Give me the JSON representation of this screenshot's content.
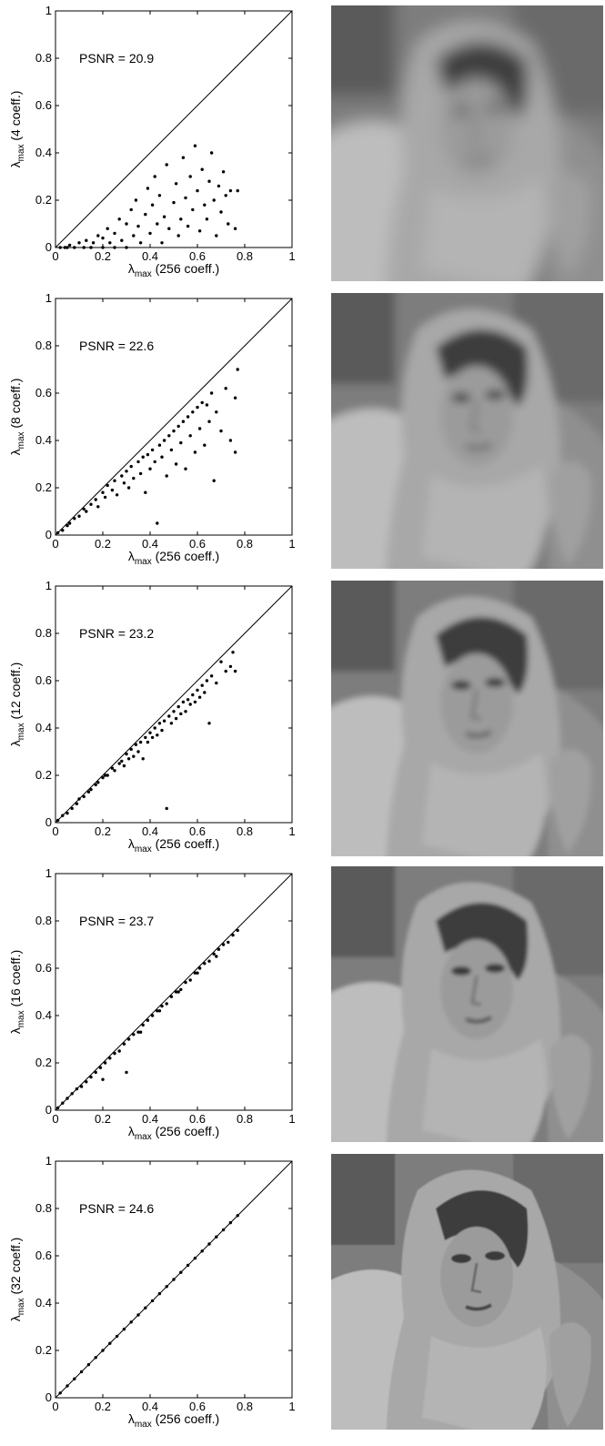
{
  "chart_data": [
    {
      "type": "scatter",
      "title": "",
      "annotation": "PSNR = 20.9",
      "ylabel_main": "λ",
      "ylabel_sub": "max",
      "ylabel_rest": " (4 coeff.)",
      "xlabel_main": "λ",
      "xlabel_sub": "max",
      "xlabel_rest": " (256 coeff.)",
      "xlim": [
        0,
        1
      ],
      "ylim": [
        0,
        1
      ],
      "xticks": [
        "0",
        "0.2",
        "0.4",
        "0.6",
        "0.8",
        "1"
      ],
      "yticks": [
        "0",
        "0.2",
        "0.4",
        "0.6",
        "0.8",
        "1"
      ],
      "reference_line": "y = x",
      "grid": false,
      "points": [
        [
          0.02,
          0.0
        ],
        [
          0.04,
          0.0
        ],
        [
          0.05,
          0.0
        ],
        [
          0.06,
          0.01
        ],
        [
          0.08,
          0.0
        ],
        [
          0.1,
          0.02
        ],
        [
          0.12,
          0.0
        ],
        [
          0.13,
          0.03
        ],
        [
          0.15,
          0.0
        ],
        [
          0.16,
          0.02
        ],
        [
          0.18,
          0.05
        ],
        [
          0.2,
          0.0
        ],
        [
          0.2,
          0.04
        ],
        [
          0.22,
          0.08
        ],
        [
          0.23,
          0.02
        ],
        [
          0.25,
          0.0
        ],
        [
          0.25,
          0.06
        ],
        [
          0.27,
          0.12
        ],
        [
          0.28,
          0.03
        ],
        [
          0.3,
          0.1
        ],
        [
          0.3,
          0.0
        ],
        [
          0.32,
          0.16
        ],
        [
          0.33,
          0.05
        ],
        [
          0.34,
          0.2
        ],
        [
          0.35,
          0.09
        ],
        [
          0.36,
          0.02
        ],
        [
          0.38,
          0.14
        ],
        [
          0.39,
          0.25
        ],
        [
          0.4,
          0.06
        ],
        [
          0.41,
          0.18
        ],
        [
          0.42,
          0.3
        ],
        [
          0.43,
          0.1
        ],
        [
          0.44,
          0.22
        ],
        [
          0.45,
          0.02
        ],
        [
          0.46,
          0.13
        ],
        [
          0.47,
          0.35
        ],
        [
          0.48,
          0.08
        ],
        [
          0.5,
          0.19
        ],
        [
          0.51,
          0.27
        ],
        [
          0.52,
          0.05
        ],
        [
          0.53,
          0.12
        ],
        [
          0.54,
          0.38
        ],
        [
          0.55,
          0.21
        ],
        [
          0.56,
          0.09
        ],
        [
          0.57,
          0.3
        ],
        [
          0.58,
          0.16
        ],
        [
          0.59,
          0.43
        ],
        [
          0.6,
          0.24
        ],
        [
          0.61,
          0.07
        ],
        [
          0.62,
          0.33
        ],
        [
          0.63,
          0.18
        ],
        [
          0.64,
          0.12
        ],
        [
          0.65,
          0.28
        ],
        [
          0.66,
          0.4
        ],
        [
          0.67,
          0.2
        ],
        [
          0.68,
          0.05
        ],
        [
          0.69,
          0.26
        ],
        [
          0.7,
          0.15
        ],
        [
          0.71,
          0.32
        ],
        [
          0.72,
          0.22
        ],
        [
          0.73,
          0.1
        ],
        [
          0.74,
          0.24
        ],
        [
          0.76,
          0.08
        ],
        [
          0.77,
          0.24
        ]
      ]
    },
    {
      "type": "scatter",
      "title": "",
      "annotation": "PSNR = 22.6",
      "ylabel_main": "λ",
      "ylabel_sub": "max",
      "ylabel_rest": " (8 coeff.)",
      "xlabel_main": "λ",
      "xlabel_sub": "max",
      "xlabel_rest": " (256 coeff.)",
      "xlim": [
        0,
        1
      ],
      "ylim": [
        0,
        1
      ],
      "xticks": [
        "0",
        "0.2",
        "0.4",
        "0.6",
        "0.8",
        "1"
      ],
      "yticks": [
        "0",
        "0.2",
        "0.4",
        "0.6",
        "0.8",
        "1"
      ],
      "reference_line": "y = x",
      "grid": false,
      "points": [
        [
          0.01,
          0.01
        ],
        [
          0.03,
          0.02
        ],
        [
          0.05,
          0.04
        ],
        [
          0.06,
          0.05
        ],
        [
          0.08,
          0.07
        ],
        [
          0.1,
          0.08
        ],
        [
          0.12,
          0.11
        ],
        [
          0.13,
          0.1
        ],
        [
          0.15,
          0.13
        ],
        [
          0.17,
          0.15
        ],
        [
          0.18,
          0.12
        ],
        [
          0.2,
          0.18
        ],
        [
          0.21,
          0.16
        ],
        [
          0.22,
          0.21
        ],
        [
          0.24,
          0.19
        ],
        [
          0.25,
          0.23
        ],
        [
          0.26,
          0.17
        ],
        [
          0.28,
          0.25
        ],
        [
          0.29,
          0.22
        ],
        [
          0.3,
          0.27
        ],
        [
          0.31,
          0.2
        ],
        [
          0.32,
          0.29
        ],
        [
          0.33,
          0.24
        ],
        [
          0.35,
          0.31
        ],
        [
          0.36,
          0.26
        ],
        [
          0.37,
          0.33
        ],
        [
          0.38,
          0.18
        ],
        [
          0.39,
          0.34
        ],
        [
          0.4,
          0.28
        ],
        [
          0.41,
          0.36
        ],
        [
          0.42,
          0.31
        ],
        [
          0.43,
          0.05
        ],
        [
          0.44,
          0.38
        ],
        [
          0.45,
          0.33
        ],
        [
          0.46,
          0.4
        ],
        [
          0.47,
          0.25
        ],
        [
          0.48,
          0.42
        ],
        [
          0.49,
          0.36
        ],
        [
          0.5,
          0.44
        ],
        [
          0.51,
          0.3
        ],
        [
          0.52,
          0.46
        ],
        [
          0.53,
          0.39
        ],
        [
          0.54,
          0.48
        ],
        [
          0.55,
          0.28
        ],
        [
          0.56,
          0.5
        ],
        [
          0.57,
          0.42
        ],
        [
          0.58,
          0.52
        ],
        [
          0.59,
          0.35
        ],
        [
          0.6,
          0.54
        ],
        [
          0.61,
          0.45
        ],
        [
          0.62,
          0.56
        ],
        [
          0.63,
          0.38
        ],
        [
          0.64,
          0.55
        ],
        [
          0.65,
          0.48
        ],
        [
          0.66,
          0.6
        ],
        [
          0.67,
          0.23
        ],
        [
          0.68,
          0.52
        ],
        [
          0.7,
          0.44
        ],
        [
          0.72,
          0.62
        ],
        [
          0.74,
          0.4
        ],
        [
          0.76,
          0.58
        ],
        [
          0.76,
          0.35
        ],
        [
          0.77,
          0.7
        ]
      ]
    },
    {
      "type": "scatter",
      "title": "",
      "annotation": "PSNR = 23.2",
      "ylabel_main": "λ",
      "ylabel_sub": "max",
      "ylabel_rest": " (12 coeff.)",
      "xlabel_main": "λ",
      "xlabel_sub": "max",
      "xlabel_rest": " (256 coeff.)",
      "xlim": [
        0,
        1
      ],
      "ylim": [
        0,
        1
      ],
      "xticks": [
        "0",
        "0.2",
        "0.4",
        "0.6",
        "0.8",
        "1"
      ],
      "yticks": [
        "0",
        "0.2",
        "0.4",
        "0.6",
        "0.8",
        "1"
      ],
      "reference_line": "y = x",
      "grid": false,
      "points": [
        [
          0.01,
          0.01
        ],
        [
          0.03,
          0.03
        ],
        [
          0.05,
          0.04
        ],
        [
          0.07,
          0.06
        ],
        [
          0.09,
          0.08
        ],
        [
          0.1,
          0.1
        ],
        [
          0.12,
          0.11
        ],
        [
          0.14,
          0.13
        ],
        [
          0.15,
          0.14
        ],
        [
          0.17,
          0.16
        ],
        [
          0.18,
          0.17
        ],
        [
          0.2,
          0.19
        ],
        [
          0.21,
          0.2
        ],
        [
          0.22,
          0.2
        ],
        [
          0.24,
          0.23
        ],
        [
          0.25,
          0.22
        ],
        [
          0.27,
          0.25
        ],
        [
          0.28,
          0.26
        ],
        [
          0.29,
          0.24
        ],
        [
          0.3,
          0.29
        ],
        [
          0.31,
          0.27
        ],
        [
          0.32,
          0.31
        ],
        [
          0.33,
          0.28
        ],
        [
          0.34,
          0.33
        ],
        [
          0.35,
          0.3
        ],
        [
          0.36,
          0.34
        ],
        [
          0.37,
          0.27
        ],
        [
          0.38,
          0.36
        ],
        [
          0.39,
          0.34
        ],
        [
          0.4,
          0.38
        ],
        [
          0.41,
          0.36
        ],
        [
          0.42,
          0.4
        ],
        [
          0.43,
          0.37
        ],
        [
          0.44,
          0.42
        ],
        [
          0.45,
          0.39
        ],
        [
          0.46,
          0.43
        ],
        [
          0.47,
          0.06
        ],
        [
          0.48,
          0.45
        ],
        [
          0.49,
          0.42
        ],
        [
          0.5,
          0.47
        ],
        [
          0.51,
          0.44
        ],
        [
          0.52,
          0.49
        ],
        [
          0.53,
          0.46
        ],
        [
          0.54,
          0.51
        ],
        [
          0.55,
          0.47
        ],
        [
          0.56,
          0.52
        ],
        [
          0.57,
          0.5
        ],
        [
          0.58,
          0.54
        ],
        [
          0.59,
          0.51
        ],
        [
          0.6,
          0.56
        ],
        [
          0.61,
          0.53
        ],
        [
          0.62,
          0.58
        ],
        [
          0.63,
          0.55
        ],
        [
          0.64,
          0.6
        ],
        [
          0.65,
          0.42
        ],
        [
          0.66,
          0.62
        ],
        [
          0.68,
          0.59
        ],
        [
          0.7,
          0.68
        ],
        [
          0.72,
          0.64
        ],
        [
          0.74,
          0.66
        ],
        [
          0.75,
          0.72
        ],
        [
          0.76,
          0.64
        ]
      ]
    },
    {
      "type": "scatter",
      "title": "",
      "annotation": "PSNR = 23.7",
      "ylabel_main": "λ",
      "ylabel_sub": "max",
      "ylabel_rest": " (16 coeff.)",
      "xlabel_main": "λ",
      "xlabel_sub": "max",
      "xlabel_rest": " (256 coeff.)",
      "xlim": [
        0,
        1
      ],
      "ylim": [
        0,
        1
      ],
      "xticks": [
        "0",
        "0.2",
        "0.4",
        "0.6",
        "0.8",
        "1"
      ],
      "yticks": [
        "0",
        "0.2",
        "0.4",
        "0.6",
        "0.8",
        "1"
      ],
      "reference_line": "y = x",
      "grid": false,
      "points": [
        [
          0.01,
          0.01
        ],
        [
          0.03,
          0.03
        ],
        [
          0.05,
          0.05
        ],
        [
          0.07,
          0.07
        ],
        [
          0.09,
          0.09
        ],
        [
          0.11,
          0.1
        ],
        [
          0.13,
          0.12
        ],
        [
          0.15,
          0.14
        ],
        [
          0.17,
          0.16
        ],
        [
          0.19,
          0.18
        ],
        [
          0.2,
          0.13
        ],
        [
          0.21,
          0.2
        ],
        [
          0.23,
          0.22
        ],
        [
          0.25,
          0.24
        ],
        [
          0.27,
          0.25
        ],
        [
          0.29,
          0.28
        ],
        [
          0.3,
          0.16
        ],
        [
          0.31,
          0.3
        ],
        [
          0.33,
          0.32
        ],
        [
          0.35,
          0.33
        ],
        [
          0.37,
          0.36
        ],
        [
          0.39,
          0.38
        ],
        [
          0.41,
          0.4
        ],
        [
          0.43,
          0.42
        ],
        [
          0.45,
          0.44
        ],
        [
          0.47,
          0.45
        ],
        [
          0.49,
          0.48
        ],
        [
          0.51,
          0.5
        ],
        [
          0.53,
          0.51
        ],
        [
          0.55,
          0.54
        ],
        [
          0.57,
          0.55
        ],
        [
          0.59,
          0.58
        ],
        [
          0.61,
          0.6
        ],
        [
          0.63,
          0.62
        ],
        [
          0.65,
          0.63
        ],
        [
          0.67,
          0.66
        ],
        [
          0.69,
          0.68
        ],
        [
          0.71,
          0.7
        ],
        [
          0.73,
          0.71
        ],
        [
          0.75,
          0.74
        ],
        [
          0.77,
          0.76
        ],
        [
          0.36,
          0.33
        ],
        [
          0.44,
          0.42
        ],
        [
          0.52,
          0.5
        ],
        [
          0.6,
          0.58
        ],
        [
          0.68,
          0.65
        ]
      ]
    },
    {
      "type": "scatter",
      "title": "",
      "annotation": "PSNR = 24.6",
      "ylabel_main": "λ",
      "ylabel_sub": "max",
      "ylabel_rest": " (32 coeff.)",
      "xlabel_main": "λ",
      "xlabel_sub": "max",
      "xlabel_rest": " (256 coeff.)",
      "xlim": [
        0,
        1
      ],
      "ylim": [
        0,
        1
      ],
      "xticks": [
        "0",
        "0.2",
        "0.4",
        "0.6",
        "0.8",
        "1"
      ],
      "yticks": [
        "0",
        "0.2",
        "0.4",
        "0.6",
        "0.8",
        "1"
      ],
      "reference_line": "y = x",
      "grid": false,
      "points": [
        [
          0.02,
          0.02
        ],
        [
          0.05,
          0.05
        ],
        [
          0.08,
          0.08
        ],
        [
          0.11,
          0.11
        ],
        [
          0.14,
          0.14
        ],
        [
          0.17,
          0.17
        ],
        [
          0.2,
          0.2
        ],
        [
          0.23,
          0.23
        ],
        [
          0.26,
          0.26
        ],
        [
          0.29,
          0.29
        ],
        [
          0.32,
          0.32
        ],
        [
          0.35,
          0.35
        ],
        [
          0.38,
          0.38
        ],
        [
          0.41,
          0.41
        ],
        [
          0.44,
          0.44
        ],
        [
          0.47,
          0.47
        ],
        [
          0.5,
          0.5
        ],
        [
          0.53,
          0.53
        ],
        [
          0.56,
          0.56
        ],
        [
          0.59,
          0.59
        ],
        [
          0.62,
          0.62
        ],
        [
          0.65,
          0.65
        ],
        [
          0.68,
          0.68
        ],
        [
          0.71,
          0.71
        ],
        [
          0.74,
          0.74
        ],
        [
          0.77,
          0.77
        ]
      ]
    }
  ],
  "images": [
    {
      "subject": "reconstructed image, 4 coefficients",
      "blur": 9
    },
    {
      "subject": "reconstructed image, 8 coefficients",
      "blur": 5
    },
    {
      "subject": "reconstructed image, 12 coefficients",
      "blur": 3.5
    },
    {
      "subject": "reconstructed image, 16 coefficients",
      "blur": 2
    },
    {
      "subject": "reconstructed image, 32 coefficients",
      "blur": 0.8
    }
  ]
}
